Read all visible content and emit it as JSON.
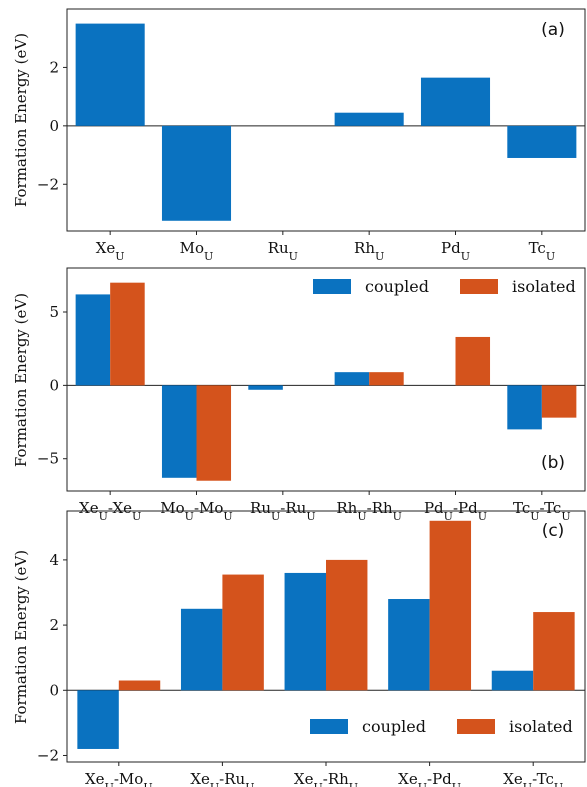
{
  "colors": {
    "coupled": "#0a72c0",
    "isolated": "#d4531c"
  },
  "chart_data": [
    {
      "panel": "(a)",
      "type": "bar",
      "ylabel": "Formation Energy (eV)",
      "ylim": [
        -3.6,
        4.0
      ],
      "yticks": [
        -2,
        0,
        2
      ],
      "categories": [
        {
          "base": "Xe",
          "sub": "U"
        },
        {
          "base": "Mo",
          "sub": "U"
        },
        {
          "base": "Ru",
          "sub": "U"
        },
        {
          "base": "Rh",
          "sub": "U"
        },
        {
          "base": "Pd",
          "sub": "U"
        },
        {
          "base": "Tc",
          "sub": "U"
        }
      ],
      "series": [
        {
          "key": "coupled",
          "values": [
            3.5,
            -3.25,
            0.0,
            0.45,
            1.65,
            -1.1
          ]
        }
      ]
    },
    {
      "panel": "(b)",
      "type": "bar",
      "ylabel": "Formation Energy (eV)",
      "ylim": [
        -7.2,
        8.0
      ],
      "yticks": [
        -5,
        0,
        5
      ],
      "legend_position": "top-right",
      "categories": [
        {
          "a": "Xe",
          "b": "Xe",
          "sub": "U"
        },
        {
          "a": "Mo",
          "b": "Mo",
          "sub": "U"
        },
        {
          "a": "Ru",
          "b": "Ru",
          "sub": "U"
        },
        {
          "a": "Rh",
          "b": "Rh",
          "sub": "U"
        },
        {
          "a": "Pd",
          "b": "Pd",
          "sub": "U"
        },
        {
          "a": "Tc",
          "b": "Tc",
          "sub": "U"
        }
      ],
      "series": [
        {
          "key": "coupled",
          "name": "coupled",
          "values": [
            6.2,
            -6.3,
            -0.3,
            0.9,
            0.0,
            -3.0
          ]
        },
        {
          "key": "isolated",
          "name": "isolated",
          "values": [
            7.0,
            -6.5,
            0.0,
            0.9,
            3.3,
            -2.2
          ]
        }
      ]
    },
    {
      "panel": "(c)",
      "type": "bar",
      "ylabel": "Formation Energy (eV)",
      "ylim": [
        -2.2,
        5.5
      ],
      "yticks": [
        -2,
        0,
        2,
        4
      ],
      "legend_position": "bottom-right",
      "categories": [
        {
          "a": "Xe",
          "b": "Mo",
          "sub": "U"
        },
        {
          "a": "Xe",
          "b": "Ru",
          "sub": "U"
        },
        {
          "a": "Xe",
          "b": "Rh",
          "sub": "U"
        },
        {
          "a": "Xe",
          "b": "Pd",
          "sub": "U"
        },
        {
          "a": "Xe",
          "b": "Tc",
          "sub": "U"
        }
      ],
      "series": [
        {
          "key": "coupled",
          "name": "coupled",
          "values": [
            -1.8,
            2.5,
            3.6,
            2.8,
            0.6
          ]
        },
        {
          "key": "isolated",
          "name": "isolated",
          "values": [
            0.3,
            3.55,
            4.0,
            5.2,
            2.4
          ]
        }
      ]
    }
  ]
}
